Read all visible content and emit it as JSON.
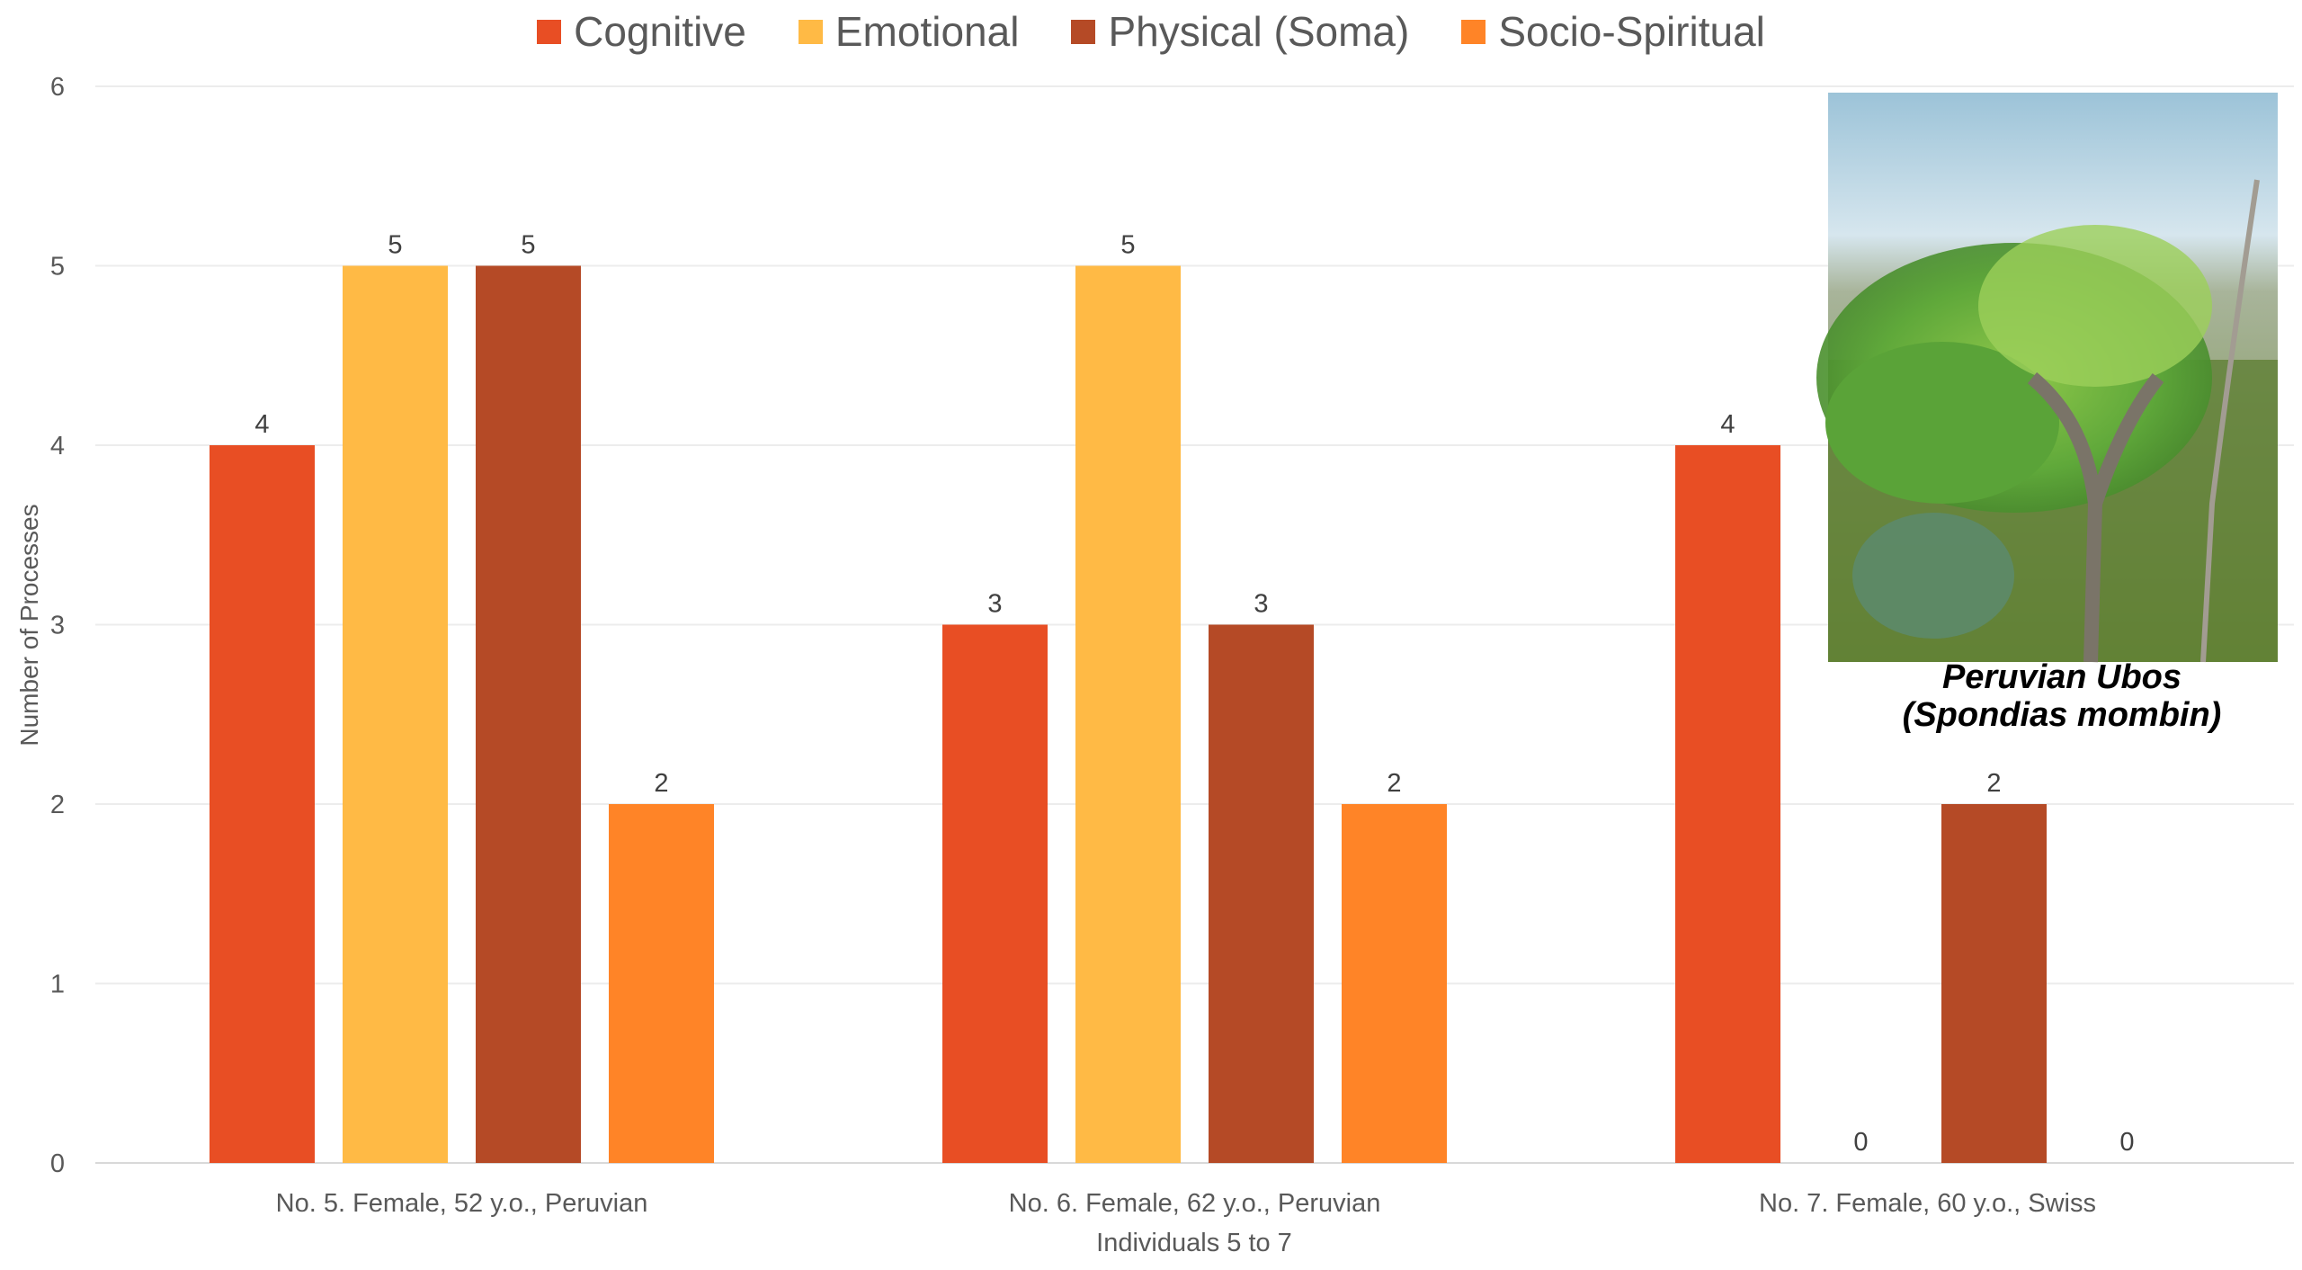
{
  "chart_data": {
    "type": "bar",
    "title": "",
    "xlabel": "Individuals 5 to 7",
    "ylabel": "Number of Processes",
    "ylim": [
      0,
      6
    ],
    "yticks": [
      0,
      1,
      2,
      3,
      4,
      5,
      6
    ],
    "grid": true,
    "legend_position": "top",
    "categories": [
      "No. 5. Female, 52 y.o., Peruvian",
      "No. 6. Female, 62 y.o., Peruvian",
      "No. 7. Female, 60 y.o., Swiss"
    ],
    "series": [
      {
        "name": "Cognitive",
        "color": "#E84E24",
        "values": [
          4,
          3,
          4
        ]
      },
      {
        "name": "Emotional",
        "color": "#FFBA45",
        "values": [
          5,
          5,
          0
        ]
      },
      {
        "name": "Physical (Soma)",
        "color": "#B54A26",
        "values": [
          5,
          3,
          2
        ]
      },
      {
        "name": "Socio-Spiritual",
        "color": "#FF8427",
        "values": [
          2,
          2,
          0
        ]
      }
    ]
  },
  "inset": {
    "caption_line1": "Peruvian Ubos",
    "caption_line2": "(Spondias mombin)"
  }
}
